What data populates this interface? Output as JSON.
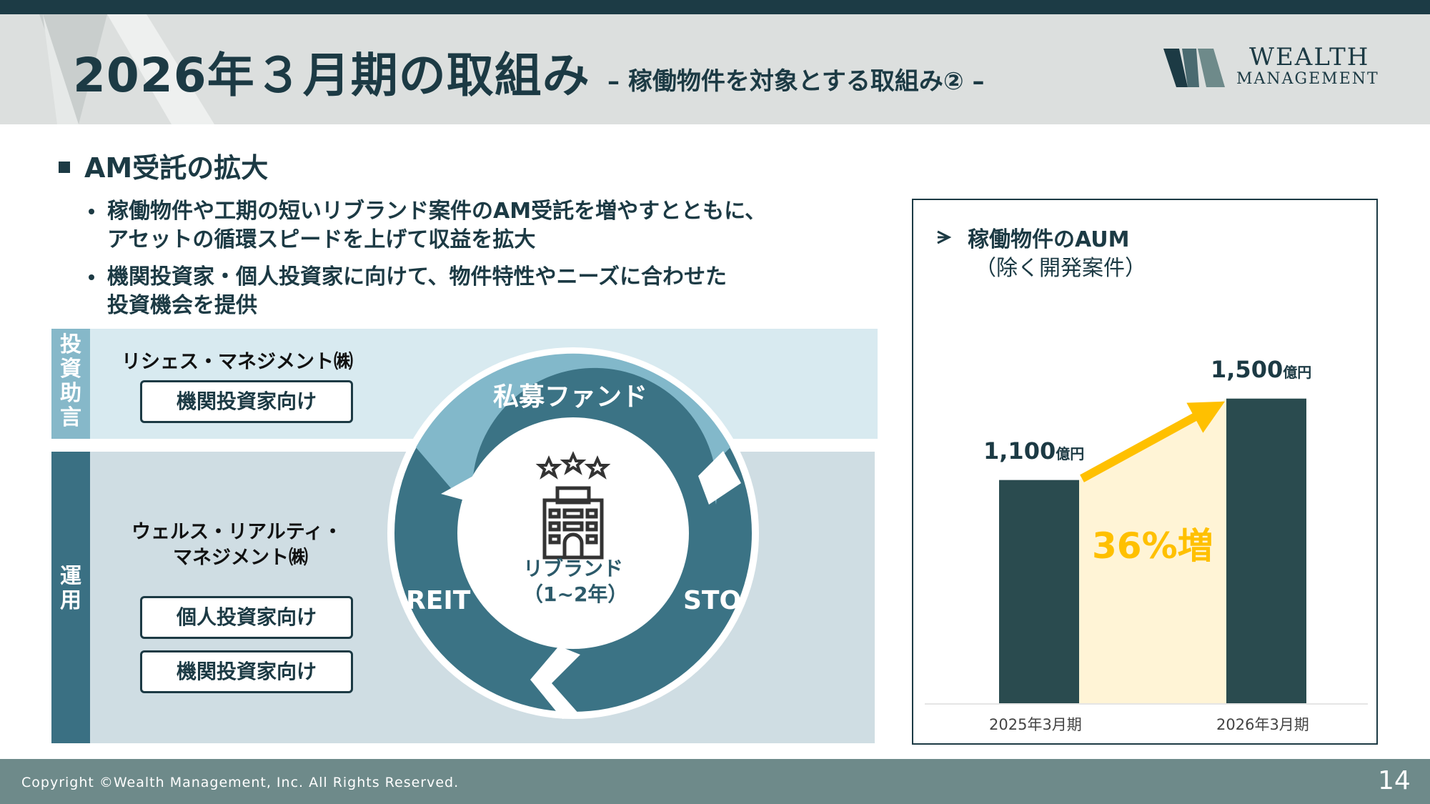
{
  "header": {
    "title": "2026年３月期の取組み",
    "subtitle": "– 稼働物件を対象とする取組み② –",
    "logo_line1": "WEALTH",
    "logo_line2": "MANAGEMENT"
  },
  "section": {
    "heading": "AM受託の拡大",
    "bullets": [
      {
        "line1": "稼働物件や工期の短いリブランド案件のAM受託を増やすとともに、",
        "line2": "アセットの循環スピードを上げて収益を拡大"
      },
      {
        "line1": "機関投資家・個人投資家に向けて、物件特性やニーズに合わせた",
        "line2": "投資機会を提供"
      }
    ]
  },
  "diagram": {
    "side_top": "投資助言",
    "side_bottom": "運用",
    "company1": "リシェス・マネジメント㈱",
    "company1_pill": "機関投資家向け",
    "company2_line1": "ウェルス・リアルティ・",
    "company2_line2": "マネジメント㈱",
    "company2_pill1": "個人投資家向け",
    "company2_pill2": "機関投資家向け",
    "cycle_top": "私募ファンド",
    "cycle_left": "REIT",
    "cycle_right": "STO",
    "center_line1": "リブランド",
    "center_line2": "（1~2年）",
    "colors": {
      "top_band": "#d8eaf0",
      "bottom_band": "#cfdde3",
      "side_top": "#86b8c9",
      "side_bottom": "#3a7083",
      "ring_light": "#82b8ca",
      "ring_dark": "#3b7385"
    }
  },
  "chart_data": {
    "type": "bar",
    "title": "稼働物件のAUM",
    "subtitle": "（除く開発案件）",
    "categories": [
      "2025年3月期",
      "2026年3月期"
    ],
    "values": [
      1100,
      1500
    ],
    "value_labels": [
      "1,100",
      "1,500"
    ],
    "unit": "億円",
    "annotation": "36%増",
    "ylim": [
      0,
      1650
    ],
    "colors": {
      "bar": "#2a4b4f",
      "arrow": "#ffc000",
      "fill": "#fff4d6",
      "annotation": "#ffc000"
    }
  },
  "footer": {
    "copyright": "Copyright ©Wealth Management, Inc. All Rights Reserved.",
    "page": "14"
  }
}
